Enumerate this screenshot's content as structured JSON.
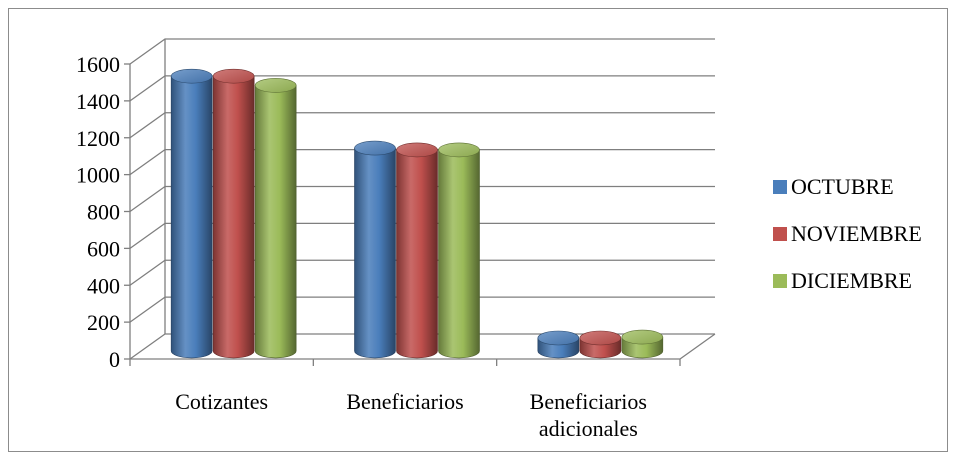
{
  "chart_data": {
    "type": "bar",
    "style": "3d-cylinder",
    "categories": [
      "Cotizantes",
      "Beneficiarios",
      "Beneficiarios adicionales"
    ],
    "series": [
      {
        "name": "OCTUBRE",
        "color": "#4a7ebb",
        "values": [
          1490,
          1100,
          70
        ]
      },
      {
        "name": "NOVIEMBRE",
        "color": "#c0504d",
        "values": [
          1490,
          1090,
          70
        ]
      },
      {
        "name": "DICIEMBRE",
        "color": "#9bbb59",
        "values": [
          1440,
          1090,
          75
        ]
      }
    ],
    "ylim": [
      0,
      1600
    ],
    "yticks": [
      0,
      200,
      400,
      600,
      800,
      1000,
      1200,
      1400,
      1600
    ],
    "grid": true,
    "legend_position": "right",
    "title": "",
    "xlabel": "",
    "ylabel": ""
  }
}
